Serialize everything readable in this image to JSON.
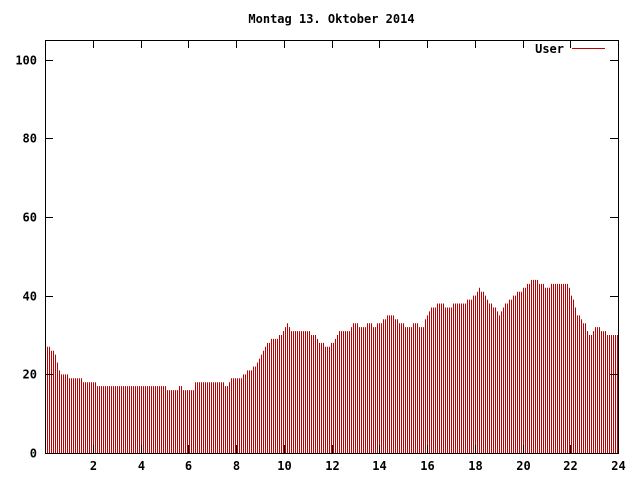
{
  "chart_data": {
    "type": "bar",
    "title": "Montag 13. Oktober 2014",
    "xlabel": "",
    "ylabel": "",
    "xlim": [
      0,
      24
    ],
    "ylim": [
      0,
      105
    ],
    "x_ticks": [
      2,
      4,
      6,
      8,
      10,
      12,
      14,
      16,
      18,
      20,
      22,
      24
    ],
    "y_ticks": [
      0,
      20,
      40,
      60,
      80,
      100
    ],
    "grid": false,
    "legend_position": "top-right",
    "bar_color": "#c00000",
    "series": [
      {
        "name": "User",
        "profile": [
          [
            0.0,
            27
          ],
          [
            0.4,
            26
          ],
          [
            0.55,
            22
          ],
          [
            0.6,
            20
          ],
          [
            0.9,
            20
          ],
          [
            1.0,
            19
          ],
          [
            1.5,
            19
          ],
          [
            1.6,
            18
          ],
          [
            2.0,
            18
          ],
          [
            2.2,
            17
          ],
          [
            3.0,
            17
          ],
          [
            4.0,
            17
          ],
          [
            5.0,
            17
          ],
          [
            5.1,
            16
          ],
          [
            5.5,
            16
          ],
          [
            5.6,
            17
          ],
          [
            5.8,
            16
          ],
          [
            6.2,
            16
          ],
          [
            6.3,
            18
          ],
          [
            6.8,
            18
          ],
          [
            7.0,
            18
          ],
          [
            7.4,
            18
          ],
          [
            7.6,
            17
          ],
          [
            7.8,
            19
          ],
          [
            8.2,
            19
          ],
          [
            8.5,
            21
          ],
          [
            8.8,
            22
          ],
          [
            9.0,
            24
          ],
          [
            9.3,
            28
          ],
          [
            9.6,
            29
          ],
          [
            9.9,
            30
          ],
          [
            10.1,
            33
          ],
          [
            10.3,
            31
          ],
          [
            10.6,
            31
          ],
          [
            10.9,
            31
          ],
          [
            11.3,
            30
          ],
          [
            11.5,
            28
          ],
          [
            11.8,
            27
          ],
          [
            12.1,
            28
          ],
          [
            12.3,
            31
          ],
          [
            12.7,
            31
          ],
          [
            12.9,
            33
          ],
          [
            13.3,
            32
          ],
          [
            13.6,
            33
          ],
          [
            13.8,
            32
          ],
          [
            14.0,
            33
          ],
          [
            14.2,
            34
          ],
          [
            14.4,
            35
          ],
          [
            14.6,
            35
          ],
          [
            14.8,
            33
          ],
          [
            15.2,
            32
          ],
          [
            15.5,
            33
          ],
          [
            15.8,
            32
          ],
          [
            16.0,
            35
          ],
          [
            16.2,
            37
          ],
          [
            16.5,
            38
          ],
          [
            16.9,
            37
          ],
          [
            17.2,
            38
          ],
          [
            17.5,
            38
          ],
          [
            17.8,
            39
          ],
          [
            18.0,
            40
          ],
          [
            18.2,
            42
          ],
          [
            18.5,
            39
          ],
          [
            18.8,
            37
          ],
          [
            19.0,
            35
          ],
          [
            19.3,
            38
          ],
          [
            19.6,
            40
          ],
          [
            19.9,
            41
          ],
          [
            20.2,
            43
          ],
          [
            20.5,
            44
          ],
          [
            20.8,
            43
          ],
          [
            21.0,
            42
          ],
          [
            21.3,
            43
          ],
          [
            21.6,
            43
          ],
          [
            21.9,
            43
          ],
          [
            22.1,
            39
          ],
          [
            22.3,
            35
          ],
          [
            22.6,
            33
          ],
          [
            22.8,
            30
          ],
          [
            23.1,
            32
          ],
          [
            23.4,
            31
          ],
          [
            23.6,
            30
          ],
          [
            24.0,
            30
          ]
        ]
      }
    ]
  }
}
